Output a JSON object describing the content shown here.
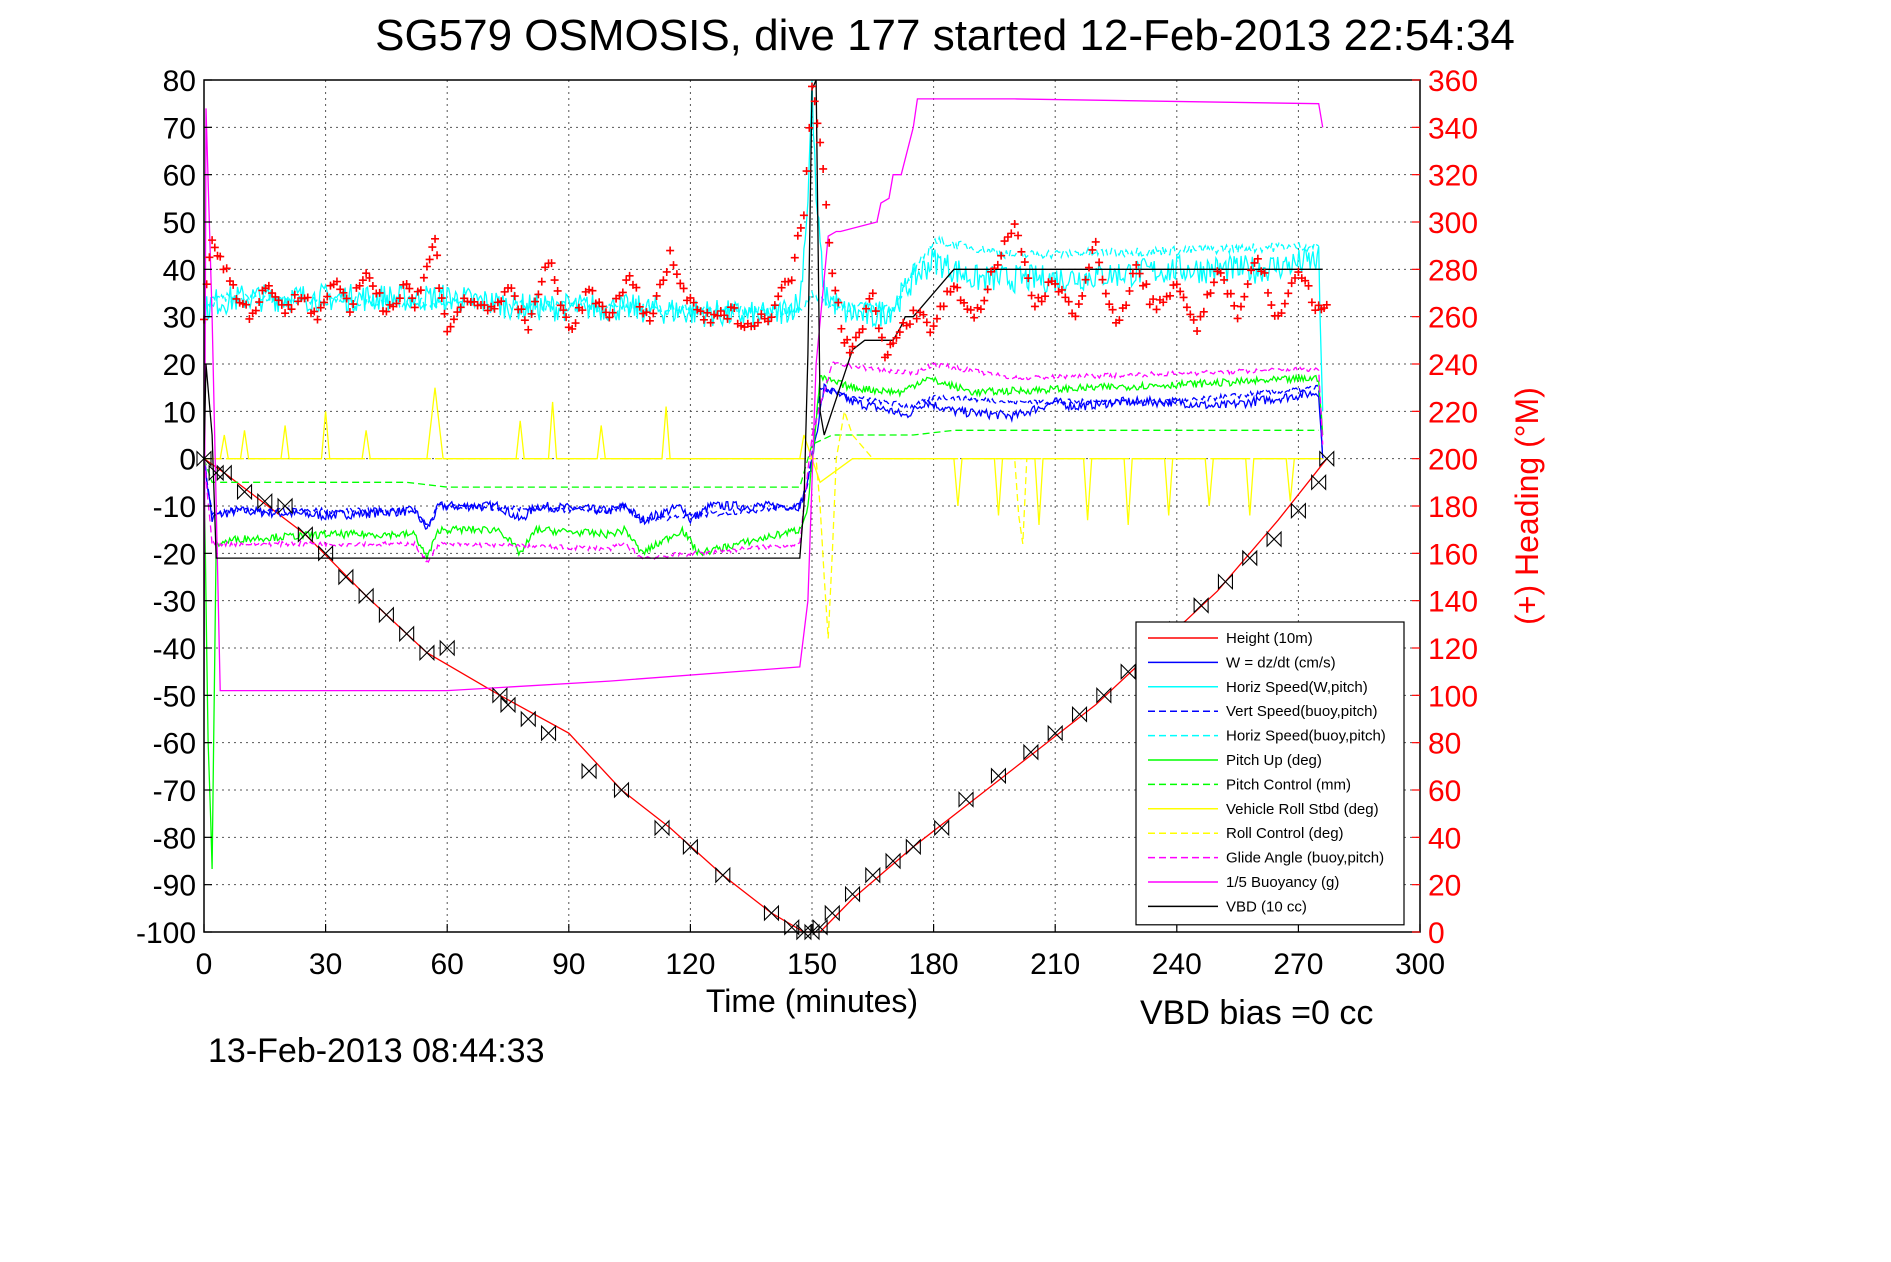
{
  "chart_data": {
    "type": "line",
    "title": "SG579 OSMOSIS, dive 177 started 12-Feb-2013 22:54:34",
    "xlabel": "Time (minutes)",
    "ylabel": "",
    "y2label": "(+) Heading (°M)",
    "footer_left": "13-Feb-2013 08:44:33",
    "footer_right": "VBD bias =0 cc",
    "xlim": [
      0,
      300
    ],
    "ylim": [
      -100,
      80
    ],
    "y2lim": [
      0,
      360
    ],
    "xticks": [
      "0",
      "30",
      "60",
      "90",
      "120",
      "150",
      "180",
      "210",
      "240",
      "270",
      "300"
    ],
    "yticks": [
      "80",
      "70",
      "60",
      "50",
      "40",
      "30",
      "20",
      "10",
      "0",
      "-10",
      "-20",
      "-30",
      "-40",
      "-50",
      "-60",
      "-70",
      "-80",
      "-90",
      "-100"
    ],
    "y2ticks": [
      "360",
      "340",
      "320",
      "300",
      "280",
      "260",
      "240",
      "220",
      "200",
      "180",
      "160",
      "140",
      "120",
      "100",
      "80",
      "60",
      "40",
      "20",
      "0"
    ],
    "grid": true,
    "legend_position": "bottom-right",
    "legend": [
      {
        "label": "Height (10m)",
        "color": "#ff0000",
        "dash": "solid"
      },
      {
        "label": "W = dz/dt (cm/s)",
        "color": "#0000ff",
        "dash": "solid"
      },
      {
        "label": "Horiz Speed(W,pitch)",
        "color": "#00ffff",
        "dash": "solid"
      },
      {
        "label": "Vert Speed(buoy,pitch)",
        "color": "#0000ff",
        "dash": "dashed"
      },
      {
        "label": "Horiz Speed(buoy,pitch)",
        "color": "#00ffff",
        "dash": "dashed"
      },
      {
        "label": "Pitch Up (deg)",
        "color": "#00ff00",
        "dash": "solid"
      },
      {
        "label": "Pitch Control (mm)",
        "color": "#00ff00",
        "dash": "dashed"
      },
      {
        "label": "Vehicle Roll Stbd (deg)",
        "color": "#ffff00",
        "dash": "solid"
      },
      {
        "label": "Roll Control (deg)",
        "color": "#ffff00",
        "dash": "dashed"
      },
      {
        "label": "Glide Angle (buoy,pitch)",
        "color": "#ff00ff",
        "dash": "dashed"
      },
      {
        "label": "1/5 Buoyancy (g)",
        "color": "#ff00ff",
        "dash": "solid"
      },
      {
        "label": "VBD (10 cc)",
        "color": "#000000",
        "dash": "solid"
      }
    ],
    "series": [
      {
        "name": "Height (10m)",
        "color": "#ff0000",
        "dash": "solid",
        "axis": "left",
        "x": [
          0,
          5,
          25,
          40,
          55,
          73,
          90,
          103,
          115,
          128,
          140,
          148,
          150,
          152,
          160,
          175,
          190,
          205,
          220,
          235,
          250,
          265,
          277
        ],
        "y": [
          0,
          -3,
          -16,
          -29,
          -41,
          -50,
          -58,
          -70,
          -78,
          -88,
          -96,
          -100,
          -100,
          -100,
          -93,
          -82,
          -72,
          -62,
          -52,
          -40,
          -28,
          -13,
          0
        ]
      },
      {
        "name": "W = dz/dt (cm/s)",
        "color": "#0000ff",
        "dash": "solid",
        "axis": "left",
        "noise": 1.0,
        "x": [
          0,
          2,
          3,
          8,
          30,
          52,
          55,
          58,
          73,
          78,
          82,
          100,
          104,
          108,
          118,
          120,
          125,
          147,
          149,
          151,
          153,
          160,
          170,
          173,
          178,
          185,
          200,
          210,
          215,
          225,
          240,
          250,
          275,
          276
        ],
        "y": [
          0,
          -13,
          -12,
          -11,
          -12,
          -11,
          -15,
          -10,
          -10,
          -13,
          -10,
          -11,
          -10,
          -13,
          -10,
          -13,
          -10,
          -10,
          -5,
          5,
          15,
          12,
          10,
          9,
          12,
          10,
          9,
          12,
          11,
          12,
          12,
          11,
          14,
          0
        ]
      },
      {
        "name": "Horiz Speed(W,pitch)",
        "color": "#00ffff",
        "dash": "solid",
        "axis": "left",
        "noise": 3.0,
        "x": [
          0,
          2,
          10,
          30,
          50,
          60,
          80,
          100,
          120,
          140,
          147,
          149,
          150,
          151,
          153,
          158,
          165,
          170,
          175,
          180,
          190,
          210,
          240,
          260,
          275,
          276
        ],
        "y": [
          31,
          33,
          34,
          34,
          34,
          34,
          32,
          32,
          31,
          30,
          33,
          55,
          78,
          55,
          35,
          31,
          30,
          32,
          38,
          42,
          38,
          38,
          40,
          40,
          42,
          10
        ]
      },
      {
        "name": "Vert Speed(buoy,pitch)",
        "color": "#0000ff",
        "dash": "dashed",
        "axis": "left",
        "noise": 0.6,
        "x": [
          0,
          2,
          5,
          52,
          55,
          58,
          100,
          104,
          108,
          147,
          149,
          152,
          160,
          175,
          180,
          200,
          240,
          275,
          276
        ],
        "y": [
          0,
          -12,
          -11,
          -11,
          -14,
          -10,
          -11,
          -10,
          -13,
          -10,
          -5,
          15,
          13,
          11,
          13,
          12,
          12,
          15,
          0
        ]
      },
      {
        "name": "Horiz Speed(buoy,pitch)",
        "color": "#00ffff",
        "dash": "dashed",
        "axis": "left",
        "noise": 1.0,
        "x": [
          0,
          5,
          50,
          100,
          147,
          150,
          155,
          170,
          180,
          200,
          240,
          275
        ],
        "y": [
          32,
          34,
          33,
          32,
          31,
          35,
          32,
          32,
          46,
          43,
          44,
          45
        ]
      },
      {
        "name": "Pitch Up (deg)",
        "color": "#00ff00",
        "dash": "solid",
        "axis": "left",
        "noise": 0.8,
        "x": [
          0,
          1,
          2,
          3,
          8,
          30,
          52,
          55,
          58,
          73,
          78,
          82,
          100,
          104,
          108,
          118,
          122,
          147,
          149,
          152,
          160,
          172,
          178,
          190,
          220,
          250,
          275,
          276
        ],
        "y": [
          0,
          -60,
          -86,
          -18,
          -17,
          -16,
          -16,
          -21,
          -15,
          -15,
          -20,
          -15,
          -16,
          -15,
          -20,
          -15,
          -20,
          -15,
          -10,
          17,
          15,
          14,
          17,
          14,
          15,
          16,
          17,
          5
        ]
      },
      {
        "name": "Pitch Control (mm)",
        "color": "#00ff00",
        "dash": "dashed",
        "axis": "left",
        "x": [
          0,
          2,
          5,
          30,
          50,
          60,
          100,
          147,
          150,
          155,
          175,
          185,
          275
        ],
        "y": [
          0,
          -5,
          -5,
          -5,
          -5,
          -6,
          -6,
          -6,
          3,
          5,
          5,
          6,
          6
        ]
      },
      {
        "name": "Vehicle Roll Stbd (deg)",
        "color": "#ffff00",
        "dash": "solid",
        "axis": "left",
        "x": [
          0,
          4,
          5,
          6,
          9,
          10,
          11,
          19,
          20,
          21,
          29,
          30,
          31,
          39,
          40,
          41,
          55,
          57,
          59,
          77,
          78,
          79,
          85,
          86,
          87,
          97,
          98,
          99,
          113,
          114,
          115,
          147,
          148,
          150,
          152,
          160,
          180,
          185,
          186,
          187,
          195,
          196,
          197,
          205,
          206,
          207,
          217,
          218,
          219,
          227,
          228,
          229,
          237,
          238,
          239,
          247,
          248,
          249,
          257,
          258,
          259,
          267,
          268,
          269,
          276
        ],
        "y": [
          0,
          0,
          5,
          0,
          0,
          6,
          0,
          0,
          7,
          0,
          0,
          10,
          0,
          0,
          6,
          0,
          0,
          15,
          0,
          0,
          8,
          0,
          0,
          12,
          0,
          0,
          7,
          0,
          0,
          11,
          0,
          0,
          5,
          0,
          -5,
          0,
          0,
          0,
          -10,
          0,
          0,
          -12,
          0,
          0,
          -14,
          0,
          0,
          -13,
          0,
          0,
          -14,
          0,
          0,
          -12,
          0,
          0,
          -10,
          0,
          0,
          -12,
          0,
          0,
          -9,
          0,
          0
        ]
      },
      {
        "name": "Roll Control (deg)",
        "color": "#ffff00",
        "dash": "dashed",
        "axis": "left",
        "x": [
          0,
          50,
          100,
          147,
          151,
          152,
          153,
          154,
          155,
          156,
          158,
          160,
          165,
          200,
          201,
          202,
          203,
          240,
          276
        ],
        "y": [
          0,
          0,
          0,
          0,
          0,
          -10,
          -25,
          -38,
          -20,
          0,
          10,
          5,
          0,
          0,
          -12,
          -18,
          0,
          0,
          0
        ]
      },
      {
        "name": "Glide Angle (buoy,pitch)",
        "color": "#ff00ff",
        "dash": "dashed",
        "axis": "left",
        "noise": 0.5,
        "x": [
          0,
          2,
          5,
          52,
          55,
          58,
          100,
          104,
          108,
          147,
          150,
          155,
          175,
          180,
          200,
          240,
          275,
          276
        ],
        "y": [
          0,
          -18,
          -18,
          -18,
          -22,
          -18,
          -19,
          -18,
          -21,
          -18,
          5,
          20,
          18,
          20,
          17,
          18,
          19,
          3
        ]
      },
      {
        "name": "1/5 Buoyancy (g)",
        "color": "#ff00ff",
        "dash": "solid",
        "axis": "left",
        "x": [
          0,
          0.5,
          2,
          4,
          60,
          100,
          147,
          149,
          151,
          154,
          156,
          157,
          166,
          167,
          169,
          170,
          172,
          175,
          176,
          200,
          275,
          276
        ],
        "y": [
          -50,
          74,
          30,
          -49,
          -49,
          -47,
          -44,
          -30,
          20,
          47,
          48,
          48,
          50,
          54,
          55,
          60,
          60,
          70,
          76,
          76,
          75,
          70
        ]
      },
      {
        "name": "VBD (10 cc)",
        "color": "#000000",
        "dash": "solid",
        "axis": "left",
        "x": [
          0,
          0.5,
          2,
          3,
          147,
          148,
          149,
          150,
          151,
          152,
          153,
          160,
          163,
          170,
          172,
          173,
          175,
          183,
          185,
          205,
          210,
          275,
          276
        ],
        "y": [
          0,
          20,
          5,
          -21,
          -21,
          -10,
          22,
          78,
          80,
          10,
          5,
          23,
          25,
          25,
          28,
          30,
          30,
          38,
          40,
          40,
          40,
          40,
          40
        ]
      }
    ],
    "heading": {
      "name": "(+) Heading",
      "axis": "right",
      "color": "#ff0000",
      "marker": "+",
      "x": [
        0,
        2,
        4,
        8,
        12,
        16,
        20,
        24,
        28,
        32,
        36,
        40,
        45,
        50,
        52,
        55,
        57,
        58,
        60,
        65,
        70,
        75,
        80,
        85,
        88,
        90,
        95,
        100,
        105,
        110,
        115,
        120,
        125,
        130,
        135,
        140,
        145,
        148,
        150,
        152,
        155,
        158,
        160,
        165,
        168,
        170,
        175,
        180,
        185,
        190,
        195,
        200,
        205,
        210,
        215,
        220,
        225,
        230,
        235,
        240,
        245,
        250,
        255,
        260,
        265,
        270,
        275,
        277
      ],
      "y": [
        260,
        295,
        285,
        270,
        260,
        275,
        262,
        270,
        260,
        276,
        262,
        280,
        262,
        275,
        265,
        280,
        293,
        275,
        255,
        268,
        262,
        272,
        255,
        285,
        265,
        255,
        270,
        262,
        275,
        258,
        285,
        265,
        258,
        262,
        256,
        262,
        278,
        305,
        360,
        335,
        280,
        250,
        245,
        270,
        245,
        248,
        262,
        255,
        275,
        258,
        280,
        298,
        265,
        275,
        262,
        290,
        255,
        280,
        262,
        275,
        255,
        280,
        262,
        285,
        258,
        280,
        262,
        265
      ]
    },
    "glider_markers": {
      "x": [
        0,
        3,
        5,
        10,
        15,
        20,
        25,
        30,
        35,
        40,
        45,
        50,
        55,
        60,
        73,
        75,
        80,
        85,
        95,
        103,
        113,
        120,
        128,
        140,
        145,
        148,
        150,
        152,
        155,
        160,
        165,
        170,
        175,
        182,
        188,
        196,
        204,
        210,
        216,
        222,
        228,
        234,
        240,
        246,
        252,
        258,
        264,
        270,
        275,
        277
      ],
      "y": [
        0,
        -3,
        -3,
        -7,
        -9,
        -10,
        -16,
        -20,
        -25,
        -29,
        -33,
        -37,
        -41,
        -40,
        -50,
        -52,
        -55,
        -58,
        -66,
        -70,
        -78,
        -82,
        -88,
        -96,
        -99,
        -100,
        -100,
        -99,
        -96,
        -92,
        -88,
        -85,
        -82,
        -78,
        -72,
        -67,
        -62,
        -58,
        -54,
        -50,
        -45,
        -41,
        -36,
        -31,
        -26,
        -21,
        -17,
        -11,
        -5,
        0
      ]
    }
  }
}
